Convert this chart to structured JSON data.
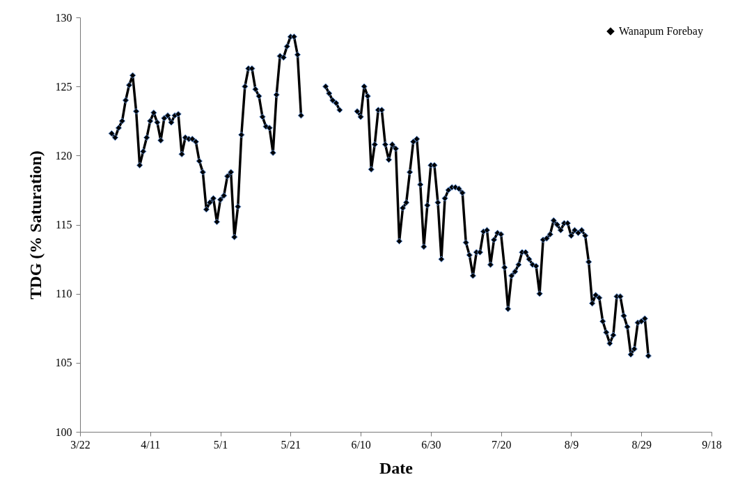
{
  "chart_data": {
    "type": "line",
    "xlabel": "Date",
    "ylabel": "TDG (% Saturation)",
    "xlim": [
      "--03-22",
      "--09-18"
    ],
    "xticks": [
      {
        "value": "--03-22",
        "label": "3/22"
      },
      {
        "value": "--04-11",
        "label": "4/11"
      },
      {
        "value": "--05-01",
        "label": "5/1"
      },
      {
        "value": "--05-21",
        "label": "5/21"
      },
      {
        "value": "--06-10",
        "label": "6/10"
      },
      {
        "value": "--06-30",
        "label": "6/30"
      },
      {
        "value": "--07-20",
        "label": "7/20"
      },
      {
        "value": "--08-09",
        "label": "8/9"
      },
      {
        "value": "--08-29",
        "label": "8/29"
      },
      {
        "value": "--09-18",
        "label": "9/18"
      }
    ],
    "ylim": [
      100,
      130
    ],
    "yticks": [
      100,
      105,
      110,
      115,
      120,
      125,
      130
    ],
    "grid": false,
    "legend": "top right",
    "marker": "diamond",
    "line_style": "solid",
    "x": [
      "--03-31",
      "--04-01",
      "--04-02",
      "--04-03",
      "--04-04",
      "--04-05",
      "--04-06",
      "--04-07",
      "--04-08",
      "--04-09",
      "--04-10",
      "--04-11",
      "--04-12",
      "--04-13",
      "--04-14",
      "--04-15",
      "--04-16",
      "--04-17",
      "--04-18",
      "--04-19",
      "--04-20",
      "--04-21",
      "--04-22",
      "--04-23",
      "--04-24",
      "--04-25",
      "--04-26",
      "--04-27",
      "--04-28",
      "--04-29",
      "--04-30",
      "--05-01",
      "--05-02",
      "--05-03",
      "--05-04",
      "--05-05",
      "--05-06",
      "--05-07",
      "--05-08",
      "--05-09",
      "--05-10",
      "--05-11",
      "--05-12",
      "--05-13",
      "--05-14",
      "--05-15",
      "--05-16",
      "--05-17",
      "--05-18",
      "--05-19",
      "--05-20",
      "--05-21",
      "--05-22",
      "--05-23",
      "--05-24",
      "--05-25",
      "--05-26",
      "--05-27",
      "--05-28",
      "--05-29",
      "--05-30",
      "--05-31",
      "--06-01",
      "--06-02",
      "--06-03",
      "--06-04",
      "--06-05",
      "--06-06",
      "--06-07",
      "--06-08",
      "--06-09",
      "--06-10",
      "--06-11",
      "--06-12",
      "--06-13",
      "--06-14",
      "--06-15",
      "--06-16",
      "--06-17",
      "--06-18",
      "--06-19",
      "--06-20",
      "--06-21",
      "--06-22",
      "--06-23",
      "--06-24",
      "--06-25",
      "--06-26",
      "--06-27",
      "--06-28",
      "--06-29",
      "--06-30",
      "--07-01",
      "--07-02",
      "--07-03",
      "--07-04",
      "--07-05",
      "--07-06",
      "--07-07",
      "--07-08",
      "--07-09",
      "--07-10",
      "--07-11",
      "--07-12",
      "--07-13",
      "--07-14",
      "--07-15",
      "--07-16",
      "--07-17",
      "--07-18",
      "--07-19",
      "--07-20",
      "--07-21",
      "--07-22",
      "--07-23",
      "--07-24",
      "--07-25",
      "--07-26",
      "--07-27",
      "--07-28",
      "--07-29",
      "--07-30",
      "--07-31",
      "--08-01",
      "--08-02",
      "--08-03",
      "--08-04",
      "--08-05",
      "--08-06",
      "--08-07",
      "--08-08",
      "--08-09",
      "--08-10",
      "--08-11",
      "--08-12",
      "--08-13",
      "--08-14",
      "--08-15",
      "--08-16",
      "--08-17",
      "--08-18",
      "--08-19",
      "--08-20",
      "--08-21",
      "--08-22",
      "--08-23",
      "--08-24",
      "--08-25",
      "--08-26",
      "--08-27",
      "--08-28",
      "--08-29",
      "--08-30",
      "--08-31"
    ],
    "series": [
      {
        "name": "Wanapum Forebay",
        "color": "#000000",
        "values": [
          121.6,
          121.3,
          122.0,
          122.5,
          124.0,
          125.1,
          125.8,
          123.2,
          119.3,
          120.3,
          121.3,
          122.5,
          123.1,
          122.4,
          121.1,
          122.7,
          122.9,
          122.4,
          122.9,
          123.0,
          120.1,
          121.3,
          121.2,
          121.2,
          121.0,
          119.6,
          118.8,
          116.1,
          116.6,
          116.9,
          115.2,
          116.8,
          117.1,
          118.5,
          118.8,
          114.1,
          116.3,
          121.5,
          125.0,
          126.3,
          126.3,
          124.8,
          124.3,
          122.8,
          122.1,
          122.0,
          120.2,
          124.4,
          127.2,
          127.1,
          127.9,
          128.6,
          128.6,
          127.3,
          122.9,
          null,
          null,
          null,
          null,
          null,
          null,
          125.0,
          124.5,
          124.0,
          123.8,
          123.3,
          null,
          null,
          null,
          null,
          123.2,
          122.8,
          125.0,
          124.3,
          119.0,
          120.8,
          123.3,
          123.3,
          120.8,
          119.7,
          120.8,
          120.5,
          113.8,
          116.2,
          116.6,
          118.8,
          121.0,
          121.2,
          117.9,
          113.4,
          116.4,
          119.3,
          119.3,
          116.6,
          112.5,
          116.9,
          117.5,
          117.7,
          117.7,
          117.6,
          117.3,
          113.7,
          112.8,
          111.3,
          113.0,
          113.0,
          114.5,
          114.6,
          112.1,
          113.9,
          114.4,
          114.3,
          111.9,
          108.9,
          111.3,
          111.6,
          112.1,
          113.0,
          113.0,
          112.5,
          112.1,
          112.0,
          110.0,
          113.9,
          114.0,
          114.3,
          115.3,
          115.0,
          114.6,
          115.1,
          115.1,
          114.2,
          114.6,
          114.4,
          114.6,
          114.2,
          112.3,
          109.3,
          109.9,
          109.7,
          108.0,
          107.2,
          106.4,
          107.0,
          109.8,
          109.8,
          108.4,
          107.6,
          105.6,
          106.0,
          107.9,
          108.0,
          108.2,
          105.5
        ]
      }
    ]
  }
}
